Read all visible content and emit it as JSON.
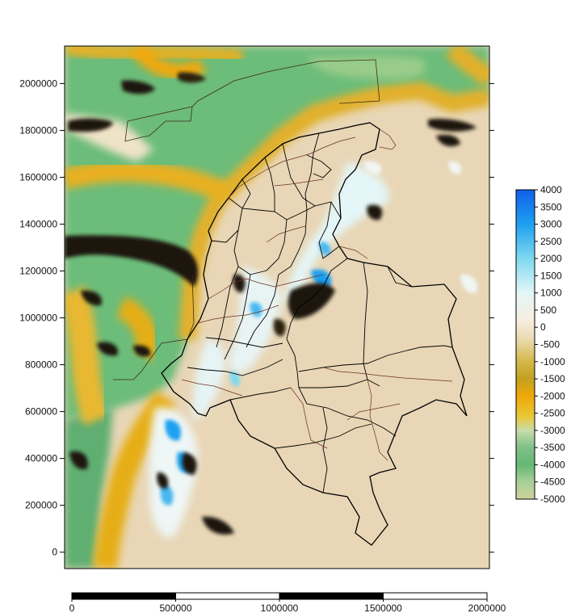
{
  "y_axis": {
    "ticks": [
      {
        "value": 2000000,
        "label": "2000000"
      },
      {
        "value": 1800000,
        "label": "1800000"
      },
      {
        "value": 1600000,
        "label": "1600000"
      },
      {
        "value": 1400000,
        "label": "1400000"
      },
      {
        "value": 1200000,
        "label": "1200000"
      },
      {
        "value": 1000000,
        "label": "1000000"
      },
      {
        "value": 800000,
        "label": "800000"
      },
      {
        "value": 600000,
        "label": "600000"
      },
      {
        "value": 400000,
        "label": "400000"
      },
      {
        "value": 200000,
        "label": "200000"
      },
      {
        "value": 0,
        "label": "0"
      }
    ],
    "range": [
      -70000,
      2160000
    ]
  },
  "scale_bar": {
    "ticks": [
      {
        "value": 0,
        "label": "0"
      },
      {
        "value": 500000,
        "label": "500000"
      },
      {
        "value": 1000000,
        "label": "1000000"
      },
      {
        "value": 1500000,
        "label": "1500000"
      },
      {
        "value": 2000000,
        "label": "2000000"
      }
    ]
  },
  "color_scale": {
    "min": -5000,
    "max": 4000,
    "ticks": [
      {
        "value": 4000,
        "label": "4000"
      },
      {
        "value": 3500,
        "label": "3500"
      },
      {
        "value": 3000,
        "label": "3000"
      },
      {
        "value": 2500,
        "label": "2500"
      },
      {
        "value": 2000,
        "label": "2000"
      },
      {
        "value": 1500,
        "label": "1500"
      },
      {
        "value": 1000,
        "label": "1000"
      },
      {
        "value": 500,
        "label": "500"
      },
      {
        "value": 0,
        "label": "0"
      },
      {
        "value": -500,
        "label": "-500"
      },
      {
        "value": -1000,
        "label": "-1000"
      },
      {
        "value": -1500,
        "label": "-1500"
      },
      {
        "value": -2000,
        "label": "-2000"
      },
      {
        "value": -2500,
        "label": "-2500"
      },
      {
        "value": -3000,
        "label": "-3000"
      },
      {
        "value": -3500,
        "label": "-3500"
      },
      {
        "value": -4000,
        "label": "-4000"
      },
      {
        "value": -4500,
        "label": "-4500"
      },
      {
        "value": -5000,
        "label": "-5000"
      }
    ],
    "stops": [
      {
        "value": 4000,
        "color": "#1060e8"
      },
      {
        "value": 3000,
        "color": "#1ea0f0"
      },
      {
        "value": 2000,
        "color": "#80d8f0"
      },
      {
        "value": 1000,
        "color": "#e4f6f8"
      },
      {
        "value": 200,
        "color": "#f6eee0"
      },
      {
        "value": -300,
        "color": "#ecdcb4"
      },
      {
        "value": -1000,
        "color": "#d2b84a"
      },
      {
        "value": -1500,
        "color": "#c4a020"
      },
      {
        "value": -2000,
        "color": "#f0a808"
      },
      {
        "value": -2600,
        "color": "#e8c838"
      },
      {
        "value": -3000,
        "color": "#c8dcac"
      },
      {
        "value": -3500,
        "color": "#80c088"
      },
      {
        "value": -4000,
        "color": "#64b874"
      },
      {
        "value": -4500,
        "color": "#a8d098"
      },
      {
        "value": -5000,
        "color": "#cdd09c"
      }
    ]
  },
  "colors": {
    "land": "#e8d6b6",
    "ocean_green": "#6cbc7a",
    "shelf_yellow": "#e2b02a",
    "deep_dark": "#1a1408",
    "boundary_black": "#000000",
    "boundary_brown": "#5a2a1a"
  }
}
